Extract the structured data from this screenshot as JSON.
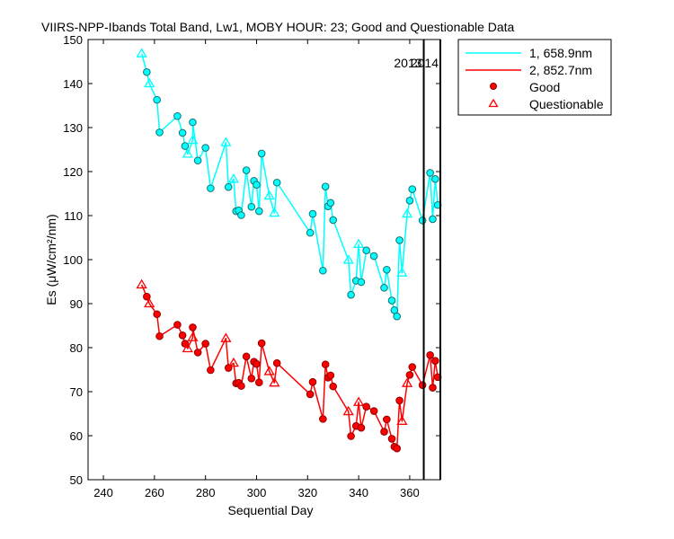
{
  "chart_data": {
    "type": "line",
    "title": "VIIRS-NPP-Ibands Total Band,  Lw1, MOBY HOUR: 23;  Good and Questionable Data",
    "xlabel": "Sequential Day",
    "ylabel": "Es (μW/cm²/nm)",
    "xlim": [
      234,
      372
    ],
    "ylim": [
      50,
      150
    ],
    "x_ticks": [
      240,
      260,
      280,
      300,
      320,
      340,
      360
    ],
    "y_ticks": [
      50,
      60,
      70,
      80,
      90,
      100,
      110,
      120,
      130,
      140,
      150
    ],
    "grid": false,
    "legend_position": "top-right outside",
    "year_lines": [
      {
        "x": 365.5,
        "label": "2013"
      },
      {
        "x": 372,
        "label": "2014"
      }
    ],
    "legend": {
      "series_1": "1, 658.9nm",
      "series_2": "2, 852.7nm",
      "good": "Good",
      "questionable": "Questionable"
    },
    "series": [
      {
        "name": "1, 658.9nm",
        "color": "#00ffff",
        "points": [
          {
            "x": 255,
            "y": 146.8,
            "q": "Q"
          },
          {
            "x": 257,
            "y": 142.6,
            "q": "G"
          },
          {
            "x": 258,
            "y": 140.0,
            "q": "Q"
          },
          {
            "x": 261,
            "y": 136.3,
            "q": "G"
          },
          {
            "x": 262,
            "y": 128.9,
            "q": "G"
          },
          {
            "x": 269,
            "y": 132.6,
            "q": "G"
          },
          {
            "x": 271,
            "y": 128.8,
            "q": "G"
          },
          {
            "x": 272,
            "y": 125.8,
            "q": "G"
          },
          {
            "x": 273,
            "y": 124.0,
            "q": "Q"
          },
          {
            "x": 275,
            "y": 127.1,
            "q": "Q"
          },
          {
            "x": 275,
            "y": 131.2,
            "q": "G"
          },
          {
            "x": 277,
            "y": 122.5,
            "q": "G"
          },
          {
            "x": 280,
            "y": 125.4,
            "q": "G"
          },
          {
            "x": 282,
            "y": 116.2,
            "q": "G"
          },
          {
            "x": 288,
            "y": 126.6,
            "q": "Q"
          },
          {
            "x": 289,
            "y": 116.5,
            "q": "G"
          },
          {
            "x": 291,
            "y": 118.3,
            "q": "Q"
          },
          {
            "x": 292,
            "y": 111.0,
            "q": "G"
          },
          {
            "x": 293,
            "y": 111.2,
            "q": "G"
          },
          {
            "x": 294,
            "y": 110.1,
            "q": "G"
          },
          {
            "x": 296,
            "y": 120.3,
            "q": "G"
          },
          {
            "x": 298,
            "y": 112.0,
            "q": "G"
          },
          {
            "x": 299,
            "y": 117.9,
            "q": "G"
          },
          {
            "x": 300,
            "y": 117.0,
            "q": "G"
          },
          {
            "x": 301,
            "y": 111.0,
            "q": "G"
          },
          {
            "x": 302,
            "y": 124.1,
            "q": "G"
          },
          {
            "x": 305,
            "y": 114.5,
            "q": "Q"
          },
          {
            "x": 307,
            "y": 110.6,
            "q": "Q"
          },
          {
            "x": 308,
            "y": 117.5,
            "q": "G"
          },
          {
            "x": 321,
            "y": 106.1,
            "q": "G"
          },
          {
            "x": 322,
            "y": 110.4,
            "q": "G"
          },
          {
            "x": 326,
            "y": 97.5,
            "q": "G"
          },
          {
            "x": 327,
            "y": 116.6,
            "q": "G"
          },
          {
            "x": 328,
            "y": 112.1,
            "q": "G"
          },
          {
            "x": 329,
            "y": 112.9,
            "q": "G"
          },
          {
            "x": 330,
            "y": 109.0,
            "q": "G"
          },
          {
            "x": 336,
            "y": 99.9,
            "q": "Q"
          },
          {
            "x": 337,
            "y": 92.0,
            "q": "G"
          },
          {
            "x": 339,
            "y": 95.2,
            "q": "G"
          },
          {
            "x": 340,
            "y": 103.5,
            "q": "Q"
          },
          {
            "x": 341,
            "y": 94.9,
            "q": "G"
          },
          {
            "x": 343,
            "y": 102.1,
            "q": "G"
          },
          {
            "x": 346,
            "y": 100.8,
            "q": "G"
          },
          {
            "x": 350,
            "y": 93.6,
            "q": "G"
          },
          {
            "x": 351,
            "y": 97.7,
            "q": "G"
          },
          {
            "x": 353,
            "y": 90.7,
            "q": "G"
          },
          {
            "x": 354,
            "y": 88.5,
            "q": "G"
          },
          {
            "x": 355,
            "y": 87.1,
            "q": "G"
          },
          {
            "x": 356,
            "y": 104.4,
            "q": "G"
          },
          {
            "x": 357,
            "y": 97.0,
            "q": "Q"
          },
          {
            "x": 359,
            "y": 110.4,
            "q": "Q"
          },
          {
            "x": 360,
            "y": 113.4,
            "q": "G"
          },
          {
            "x": 361,
            "y": 116.0,
            "q": "G"
          },
          {
            "x": 365,
            "y": 108.9,
            "q": "G"
          },
          {
            "x": 368,
            "y": 119.7,
            "q": "G"
          },
          {
            "x": 369,
            "y": 109.2,
            "q": "G"
          },
          {
            "x": 370,
            "y": 118.3,
            "q": "G"
          },
          {
            "x": 371,
            "y": 112.4,
            "q": "G"
          }
        ]
      },
      {
        "name": "2, 852.7nm",
        "color": "#ff0000",
        "points": [
          {
            "x": 255,
            "y": 94.3,
            "q": "Q"
          },
          {
            "x": 257,
            "y": 91.6,
            "q": "G"
          },
          {
            "x": 258,
            "y": 90.0,
            "q": "Q"
          },
          {
            "x": 261,
            "y": 87.6,
            "q": "G"
          },
          {
            "x": 262,
            "y": 82.6,
            "q": "G"
          },
          {
            "x": 269,
            "y": 85.2,
            "q": "G"
          },
          {
            "x": 271,
            "y": 82.8,
            "q": "G"
          },
          {
            "x": 272,
            "y": 80.9,
            "q": "G"
          },
          {
            "x": 273,
            "y": 79.8,
            "q": "Q"
          },
          {
            "x": 275,
            "y": 82.3,
            "q": "Q"
          },
          {
            "x": 275,
            "y": 84.6,
            "q": "G"
          },
          {
            "x": 277,
            "y": 78.9,
            "q": "G"
          },
          {
            "x": 280,
            "y": 80.9,
            "q": "G"
          },
          {
            "x": 282,
            "y": 74.9,
            "q": "G"
          },
          {
            "x": 288,
            "y": 82.1,
            "q": "Q"
          },
          {
            "x": 289,
            "y": 75.4,
            "q": "G"
          },
          {
            "x": 291,
            "y": 76.5,
            "q": "Q"
          },
          {
            "x": 292,
            "y": 71.9,
            "q": "G"
          },
          {
            "x": 293,
            "y": 72.0,
            "q": "G"
          },
          {
            "x": 294,
            "y": 71.3,
            "q": "G"
          },
          {
            "x": 296,
            "y": 78.0,
            "q": "G"
          },
          {
            "x": 298,
            "y": 73.0,
            "q": "G"
          },
          {
            "x": 299,
            "y": 76.8,
            "q": "G"
          },
          {
            "x": 300,
            "y": 76.3,
            "q": "G"
          },
          {
            "x": 301,
            "y": 72.1,
            "q": "G"
          },
          {
            "x": 302,
            "y": 81.0,
            "q": "G"
          },
          {
            "x": 305,
            "y": 74.6,
            "q": "Q"
          },
          {
            "x": 307,
            "y": 72.0,
            "q": "Q"
          },
          {
            "x": 308,
            "y": 76.5,
            "q": "G"
          },
          {
            "x": 321,
            "y": 69.4,
            "q": "G"
          },
          {
            "x": 322,
            "y": 72.2,
            "q": "G"
          },
          {
            "x": 326,
            "y": 63.8,
            "q": "G"
          },
          {
            "x": 327,
            "y": 76.2,
            "q": "G"
          },
          {
            "x": 328,
            "y": 73.2,
            "q": "G"
          },
          {
            "x": 329,
            "y": 73.7,
            "q": "G"
          },
          {
            "x": 330,
            "y": 71.2,
            "q": "G"
          },
          {
            "x": 336,
            "y": 65.5,
            "q": "Q"
          },
          {
            "x": 337,
            "y": 59.9,
            "q": "G"
          },
          {
            "x": 339,
            "y": 62.2,
            "q": "G"
          },
          {
            "x": 340,
            "y": 67.6,
            "q": "Q"
          },
          {
            "x": 341,
            "y": 61.8,
            "q": "G"
          },
          {
            "x": 343,
            "y": 66.6,
            "q": "G"
          },
          {
            "x": 346,
            "y": 65.6,
            "q": "G"
          },
          {
            "x": 350,
            "y": 60.9,
            "q": "G"
          },
          {
            "x": 351,
            "y": 63.7,
            "q": "G"
          },
          {
            "x": 353,
            "y": 59.3,
            "q": "G"
          },
          {
            "x": 354,
            "y": 57.5,
            "q": "G"
          },
          {
            "x": 355,
            "y": 57.1,
            "q": "G"
          },
          {
            "x": 356,
            "y": 68.0,
            "q": "G"
          },
          {
            "x": 357,
            "y": 63.3,
            "q": "Q"
          },
          {
            "x": 359,
            "y": 71.9,
            "q": "Q"
          },
          {
            "x": 360,
            "y": 73.8,
            "q": "G"
          },
          {
            "x": 361,
            "y": 75.6,
            "q": "G"
          },
          {
            "x": 365,
            "y": 71.5,
            "q": "G"
          },
          {
            "x": 368,
            "y": 78.3,
            "q": "G"
          },
          {
            "x": 369,
            "y": 70.9,
            "q": "G"
          },
          {
            "x": 370,
            "y": 77.0,
            "q": "G"
          },
          {
            "x": 371,
            "y": 73.3,
            "q": "G"
          }
        ]
      }
    ]
  }
}
